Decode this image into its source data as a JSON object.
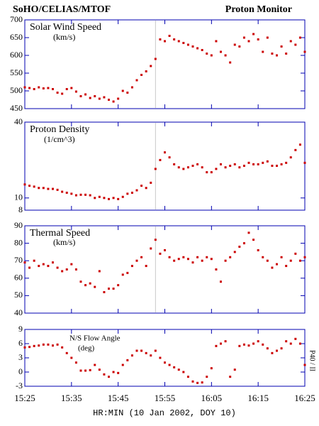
{
  "header": {
    "left": "SoHO/CELIAS/MTOF",
    "right": "Proton Monitor"
  },
  "chart_data": [
    {
      "type": "scatter",
      "title": "Solar Wind Speed",
      "units": "(km/s)",
      "color": "#cc0000",
      "vline": "15:53",
      "x": [
        "15:25",
        "15:26",
        "15:27",
        "15:28",
        "15:29",
        "15:30",
        "15:31",
        "15:32",
        "15:33",
        "15:34",
        "15:35",
        "15:36",
        "15:37",
        "15:38",
        "15:39",
        "15:40",
        "15:41",
        "15:42",
        "15:43",
        "15:44",
        "15:45",
        "15:46",
        "15:47",
        "15:48",
        "15:49",
        "15:50",
        "15:51",
        "15:52",
        "15:53",
        "15:54",
        "15:55",
        "15:56",
        "15:57",
        "15:58",
        "15:59",
        "16:00",
        "16:01",
        "16:02",
        "16:03",
        "16:04",
        "16:05",
        "16:06",
        "16:07",
        "16:08",
        "16:09",
        "16:10",
        "16:11",
        "16:12",
        "16:13",
        "16:14",
        "16:15",
        "16:16",
        "16:17",
        "16:18",
        "16:19",
        "16:20",
        "16:21",
        "16:22",
        "16:23",
        "16:24",
        "16:25"
      ],
      "values": [
        510,
        508,
        505,
        510,
        507,
        508,
        505,
        495,
        492,
        505,
        508,
        498,
        485,
        490,
        480,
        485,
        478,
        482,
        475,
        470,
        478,
        500,
        495,
        510,
        530,
        545,
        555,
        570,
        590,
        645,
        640,
        655,
        645,
        640,
        635,
        630,
        625,
        620,
        615,
        605,
        600,
        640,
        610,
        600,
        580,
        630,
        625,
        650,
        640,
        660,
        645,
        610,
        650,
        605,
        600,
        625,
        605,
        640,
        630,
        650,
        610
      ],
      "ylim": [
        450,
        700
      ],
      "yticks": [
        450,
        500,
        550,
        600,
        650,
        700
      ]
    },
    {
      "type": "scatter",
      "title": "Proton Density",
      "units": "(1/cm^3)",
      "color": "#cc0000",
      "vline": "15:53",
      "log": true,
      "x": [
        "15:25",
        "15:26",
        "15:27",
        "15:28",
        "15:29",
        "15:30",
        "15:31",
        "15:32",
        "15:33",
        "15:34",
        "15:35",
        "15:36",
        "15:37",
        "15:38",
        "15:39",
        "15:40",
        "15:41",
        "15:42",
        "15:43",
        "15:44",
        "15:45",
        "15:46",
        "15:47",
        "15:48",
        "15:49",
        "15:50",
        "15:51",
        "15:52",
        "15:53",
        "15:54",
        "15:55",
        "15:56",
        "15:57",
        "15:58",
        "15:59",
        "16:00",
        "16:01",
        "16:02",
        "16:03",
        "16:04",
        "16:05",
        "16:06",
        "16:07",
        "16:08",
        "16:09",
        "16:10",
        "16:11",
        "16:12",
        "16:13",
        "16:14",
        "16:15",
        "16:16",
        "16:17",
        "16:18",
        "16:19",
        "16:20",
        "16:21",
        "16:22",
        "16:23",
        "16:24",
        "16:25"
      ],
      "values": [
        12.8,
        12.5,
        12.3,
        12.0,
        12.0,
        11.8,
        11.8,
        11.6,
        11.2,
        11.0,
        10.8,
        10.5,
        10.6,
        10.6,
        10.5,
        10.0,
        10.2,
        10.0,
        9.8,
        10.0,
        9.8,
        10.2,
        10.8,
        11.0,
        11.5,
        12.5,
        12.0,
        13.2,
        17,
        20,
        23,
        21,
        18.5,
        17.5,
        17,
        17.5,
        18,
        18.5,
        17.5,
        16,
        16,
        17,
        18.5,
        17.5,
        18,
        18.5,
        17.5,
        18,
        19,
        18.5,
        18.5,
        19,
        19.5,
        18,
        18,
        18.5,
        19,
        21,
        24,
        26.5,
        19
      ],
      "ylim": [
        8,
        40
      ],
      "yticks": [
        8,
        10,
        40
      ]
    },
    {
      "type": "scatter",
      "title": "Thermal Speed",
      "units": "(km/s)",
      "color": "#cc0000",
      "vline": "15:53",
      "x": [
        "15:25",
        "15:26",
        "15:27",
        "15:28",
        "15:29",
        "15:30",
        "15:31",
        "15:32",
        "15:33",
        "15:34",
        "15:35",
        "15:36",
        "15:37",
        "15:38",
        "15:39",
        "15:40",
        "15:41",
        "15:42",
        "15:43",
        "15:44",
        "15:45",
        "15:46",
        "15:47",
        "15:48",
        "15:49",
        "15:50",
        "15:51",
        "15:52",
        "15:53",
        "15:54",
        "15:55",
        "15:56",
        "15:57",
        "15:58",
        "15:59",
        "16:00",
        "16:01",
        "16:02",
        "16:03",
        "16:04",
        "16:05",
        "16:06",
        "16:07",
        "16:08",
        "16:09",
        "16:10",
        "16:11",
        "16:12",
        "16:13",
        "16:14",
        "16:15",
        "16:16",
        "16:17",
        "16:18",
        "16:19",
        "16:20",
        "16:21",
        "16:22",
        "16:23",
        "16:24",
        "16:25"
      ],
      "values": [
        69,
        66,
        70,
        67,
        68,
        67,
        69,
        66,
        64,
        65,
        68,
        65,
        58,
        56,
        57,
        55,
        64,
        52,
        54,
        54,
        56,
        62,
        63,
        67,
        70,
        72,
        67,
        77,
        82,
        74,
        76,
        72,
        70,
        71,
        72,
        71,
        69,
        72,
        70,
        72,
        71,
        65,
        58,
        70,
        72,
        75,
        78,
        80,
        86,
        82,
        76,
        72,
        70,
        66,
        68,
        72,
        67,
        70,
        74,
        70,
        72
      ],
      "ylim": [
        40,
        90
      ],
      "yticks": [
        40,
        50,
        60,
        70,
        80,
        90
      ]
    },
    {
      "type": "scatter",
      "title": "N/S Flow Angle",
      "units": "(deg)",
      "color": "#cc0000",
      "right_label": "P40 / II",
      "x": [
        "15:25",
        "15:26",
        "15:27",
        "15:28",
        "15:29",
        "15:30",
        "15:31",
        "15:32",
        "15:33",
        "15:34",
        "15:35",
        "15:36",
        "15:37",
        "15:38",
        "15:39",
        "15:40",
        "15:41",
        "15:42",
        "15:43",
        "15:44",
        "15:45",
        "15:46",
        "15:47",
        "15:48",
        "15:49",
        "15:50",
        "15:51",
        "15:52",
        "15:53",
        "15:54",
        "15:55",
        "15:56",
        "15:57",
        "15:58",
        "15:59",
        "16:00",
        "16:01",
        "16:02",
        "16:03",
        "16:04",
        "16:05",
        "16:06",
        "16:07",
        "16:08",
        "16:09",
        "16:10",
        "16:11",
        "16:12",
        "16:13",
        "16:14",
        "16:15",
        "16:16",
        "16:17",
        "16:18",
        "16:19",
        "16:20",
        "16:21",
        "16:22",
        "16:23",
        "16:24",
        "16:25"
      ],
      "values": [
        5.2,
        5.3,
        5.5,
        5.6,
        5.8,
        5.8,
        5.6,
        5.8,
        5.2,
        4.0,
        3.0,
        2.0,
        0.3,
        0.3,
        0.4,
        1.5,
        0.5,
        -0.5,
        -1.0,
        0.0,
        -0.2,
        1.5,
        2.5,
        3.5,
        4.5,
        4.5,
        4.0,
        3.5,
        4.5,
        3.0,
        2.0,
        1.5,
        1.0,
        0.5,
        0,
        -1.0,
        -2.0,
        -2.3,
        -2.2,
        -1.0,
        0.8,
        5.5,
        6.0,
        6.5,
        -1.0,
        0.5,
        5.5,
        5.8,
        5.6,
        6.0,
        6.5,
        5.8,
        5.0,
        4.0,
        4.5,
        5.0,
        6.5,
        6.0,
        7.0,
        6.0,
        1.5
      ],
      "ylim": [
        -3,
        9
      ],
      "yticks": [
        -3,
        0,
        3,
        6,
        9
      ],
      "xlabel": "HR:MIN (10 Jan 2002, DOY 10)",
      "xlim": [
        "15:25",
        "16:25"
      ],
      "xticks": [
        "15:25",
        "15:35",
        "15:45",
        "15:55",
        "16:05",
        "16:15",
        "16:25"
      ]
    }
  ]
}
